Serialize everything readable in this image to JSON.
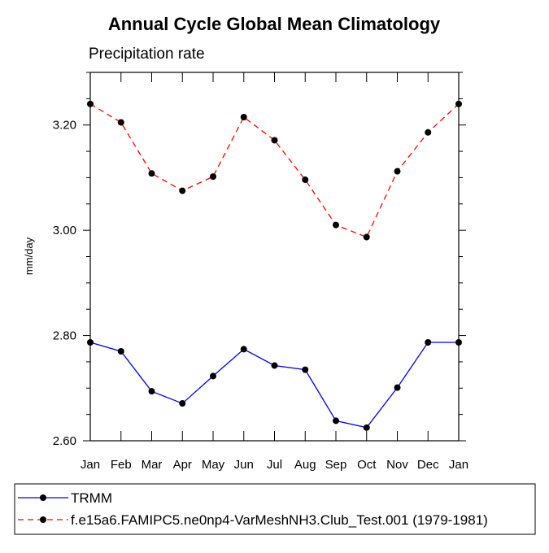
{
  "chart_data": {
    "type": "line",
    "title": "Annual Cycle Global Mean Climatology",
    "subtitle": "Precipitation rate",
    "xlabel": "",
    "ylabel": "mm/day",
    "categories": [
      "Jan",
      "Feb",
      "Mar",
      "Apr",
      "May",
      "Jun",
      "Jul",
      "Aug",
      "Sep",
      "Oct",
      "Nov",
      "Dec",
      "Jan"
    ],
    "ylim": [
      2.6,
      3.3
    ],
    "yticks": [
      2.6,
      2.8,
      3.0,
      3.2
    ],
    "ytick_labels": [
      "2.60",
      "2.80",
      "3.00",
      "3.20"
    ],
    "grid": false,
    "legend_position": "bottom",
    "series": [
      {
        "name": "TRMM",
        "color": "#0000ff",
        "line_style": "solid",
        "marker": "circle",
        "values": [
          2.787,
          2.77,
          2.694,
          2.671,
          2.723,
          2.774,
          2.743,
          2.735,
          2.638,
          2.625,
          2.701,
          2.787,
          2.787
        ]
      },
      {
        "name": "f.e15a6.FAMIPC5.ne0np4-VarMeshNH3.Club_Test.001 (1979-1981)",
        "color": "#ff0000",
        "line_style": "dashed",
        "marker": "circle",
        "values": [
          3.24,
          3.205,
          3.108,
          3.075,
          3.102,
          3.215,
          3.171,
          3.096,
          3.01,
          2.987,
          3.112,
          3.186,
          3.24
        ]
      }
    ]
  }
}
